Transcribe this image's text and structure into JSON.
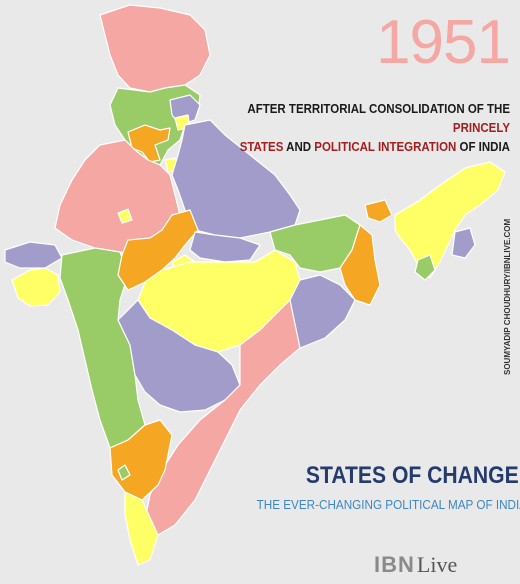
{
  "year": "1951",
  "subtitle": {
    "part1": "AFTER TERRITORIAL CONSOLIDATION OF THE ",
    "part2": "PRINCELY",
    "part3": "STATES",
    "part4": " AND ",
    "part5": "POLITICAL INTEGRATION",
    "part6": " OF INDIA"
  },
  "credit": "SOUMYADIP CHOUDHURY/IBNLIVE.COM",
  "title": "STATES OF CHANGE",
  "tagline": "THE EVER-CHANGING POLITICAL MAP OF INDIA",
  "logo": {
    "ibn": "IBN",
    "live": "Live"
  },
  "colors": {
    "background": "#e9e9e9",
    "pink": "#f4a7a3",
    "purple": "#a19cc9",
    "green": "#99cc66",
    "yellow": "#ffff66",
    "orange": "#f5a623",
    "year_text": "#f4a7a3",
    "highlight_text": "#a31f1f",
    "title_text": "#253b6e",
    "tagline_text": "#3e87c2"
  }
}
